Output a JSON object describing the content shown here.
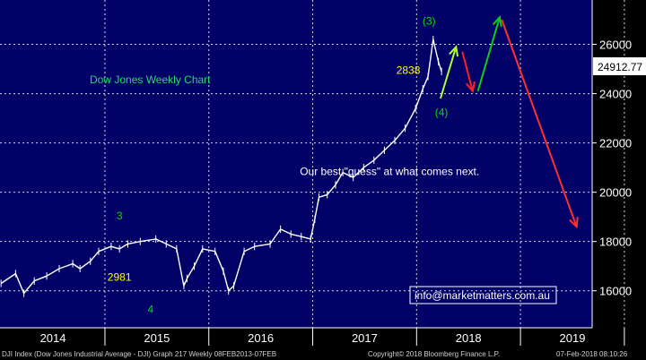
{
  "chart_data": {
    "type": "line",
    "title": "Dow Jones Weekly Chart",
    "ylim": [
      14500,
      27800
    ],
    "y_ticks": [
      16000,
      18000,
      20000,
      22000,
      24000,
      26000
    ],
    "y_tick_labels": [
      "16000",
      "18000",
      "20000",
      "22000",
      "24000",
      "26000"
    ],
    "x_year_labels": [
      "2014",
      "2015",
      "2016",
      "2017",
      "2018",
      "2019"
    ],
    "last_price_label": "24912.77",
    "grid": true,
    "series": [
      {
        "x": [
          2013.86,
          2014.0,
          2014.08,
          2014.18,
          2014.3,
          2014.42,
          2014.55,
          2014.62,
          2014.72,
          2014.8,
          2014.92,
          2015.0,
          2015.08,
          2015.2,
          2015.35,
          2015.45,
          2015.55,
          2015.62,
          2015.65,
          2015.72,
          2015.8,
          2015.92,
          2016.0,
          2016.05,
          2016.1,
          2016.2,
          2016.3,
          2016.45,
          2016.55,
          2016.65,
          2016.75,
          2016.84,
          2016.88,
          2016.92,
          2017.0,
          2017.08,
          2017.15,
          2017.25,
          2017.35,
          2017.45,
          2017.55,
          2017.65,
          2017.75,
          2017.85,
          2017.92,
          2017.97,
          2018.02,
          2018.07,
          2018.1
        ],
        "values": [
          16300,
          16700,
          15900,
          16400,
          16600,
          16900,
          17100,
          16900,
          17200,
          17600,
          17800,
          17700,
          17900,
          18000,
          18100,
          17900,
          17700,
          16200,
          16500,
          17000,
          17700,
          17600,
          16800,
          16000,
          16200,
          17600,
          17800,
          17900,
          18500,
          18300,
          18200,
          18100,
          18900,
          19800,
          19900,
          20300,
          20800,
          20600,
          21000,
          21300,
          21700,
          22100,
          22600,
          23400,
          24200,
          24700,
          26200,
          25300,
          24900
        ]
      }
    ],
    "annotations": [
      {
        "text": "3",
        "x": 2015.0,
        "y": 18900,
        "color": "#00e000"
      },
      {
        "text": "2981",
        "x": 2015.0,
        "y": 16400,
        "color": "#ffff00"
      },
      {
        "text": "4",
        "x": 2015.3,
        "y": 15100,
        "color": "#00e000"
      },
      {
        "text": "(3)",
        "x": 2017.98,
        "y": 26800,
        "color": "#00e000"
      },
      {
        "text": "2838",
        "x": 2017.78,
        "y": 24800,
        "color": "#ffff00"
      },
      {
        "text": "(4)",
        "x": 2018.1,
        "y": 23100,
        "color": "#00e000"
      },
      {
        "text": "Our best \"guess\" at what comes next.",
        "x": 2017.6,
        "y": 20700,
        "color": "#ffffff"
      }
    ],
    "forecast_arrows": [
      {
        "from": [
          2018.09,
          23800
        ],
        "to": [
          2018.24,
          25900
        ],
        "color": "#aaff33"
      },
      {
        "from": [
          2018.3,
          25700
        ],
        "to": [
          2018.4,
          24100
        ],
        "color": "#ff2020"
      },
      {
        "from": [
          2018.45,
          24100
        ],
        "to": [
          2018.66,
          27100
        ],
        "color": "#11cc11"
      },
      {
        "from": [
          2018.68,
          27000
        ],
        "to": [
          2019.4,
          18600
        ],
        "color": "#ff3030"
      }
    ],
    "colors": {
      "background": "#000066",
      "frame": "#000000",
      "grid": "#ffffff",
      "price": "#ffffff",
      "label_box": "#ffffff"
    }
  },
  "contact": "info@marketmatters.com.au",
  "footer": {
    "left": "DJI Index (Dow Jones Industrial Average - DJI) Graph 217  Weekly 08FEB2013-07FEB",
    "copyright": "Copyright© 2018 Bloomberg Finance L.P.",
    "timestamp": "07-Feb-2018 08:10:26"
  }
}
